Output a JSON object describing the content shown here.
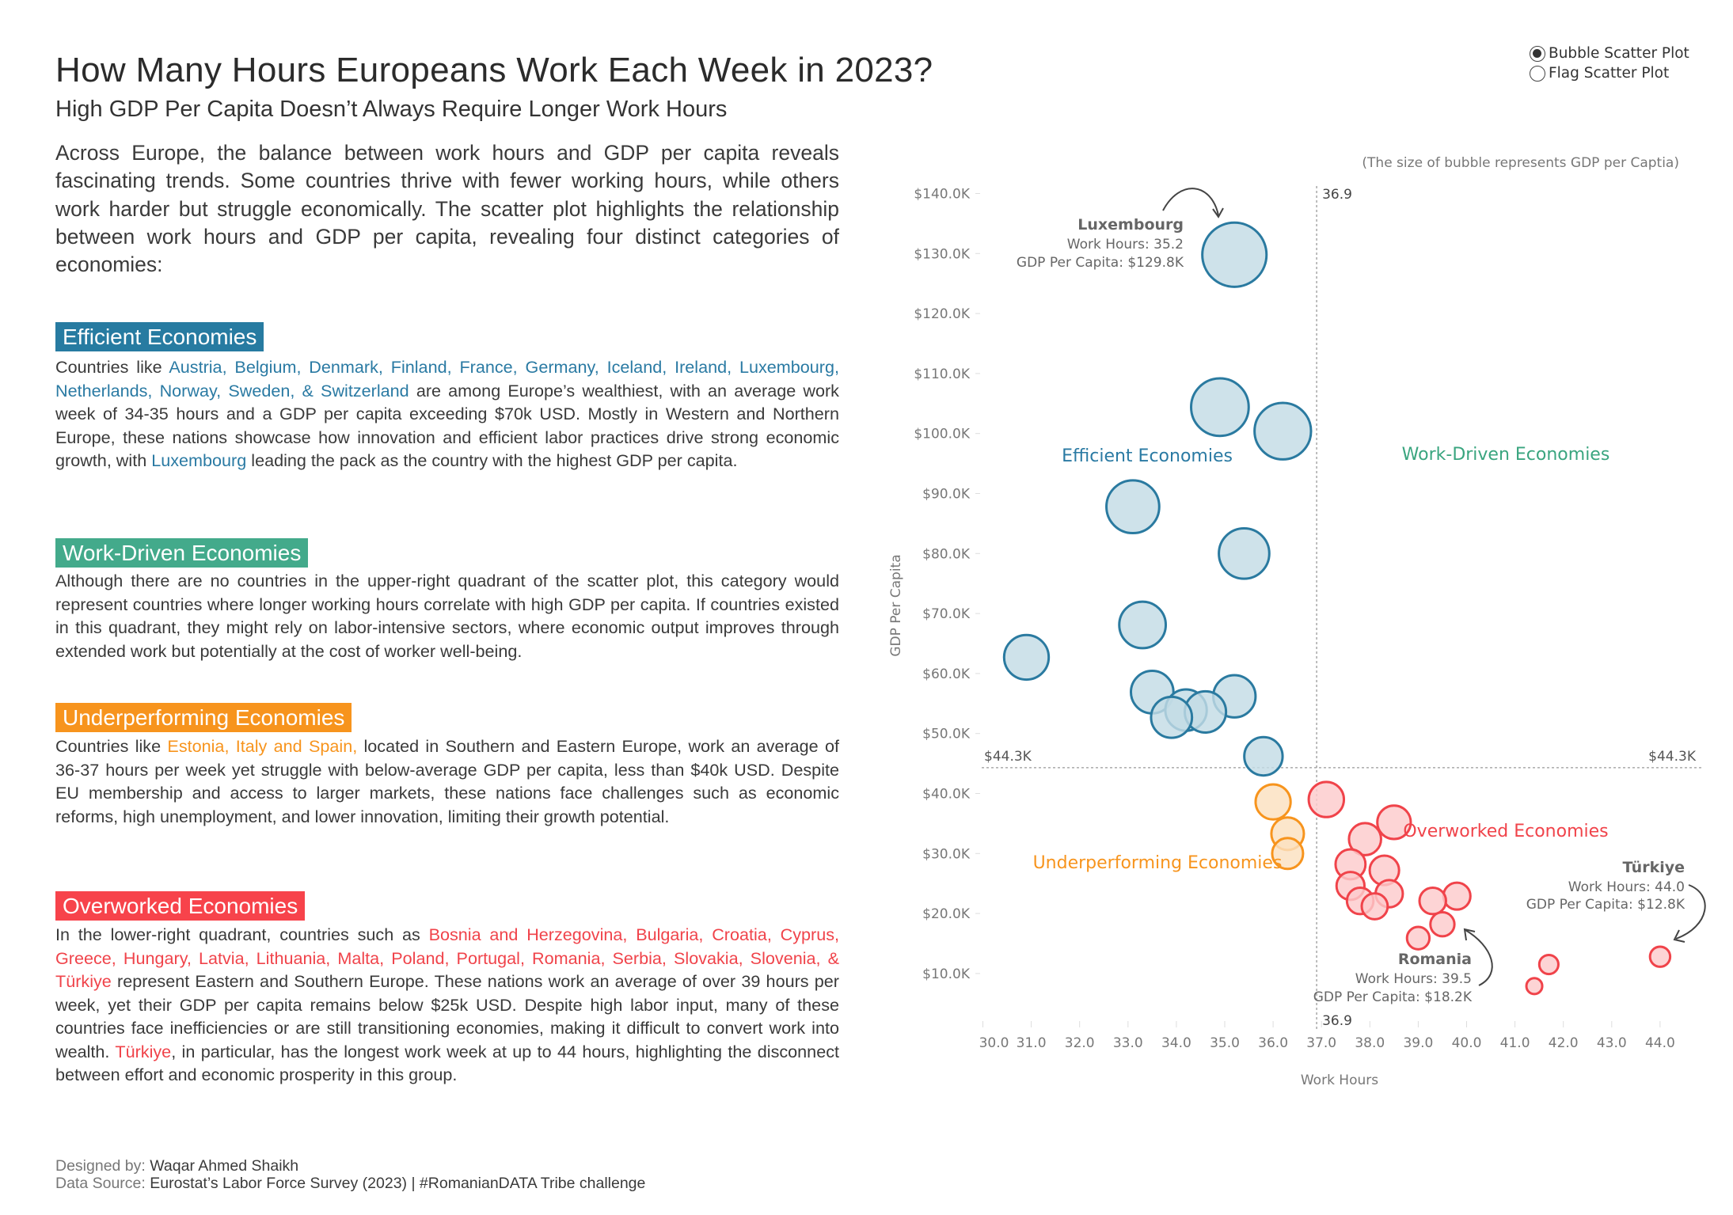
{
  "header": {
    "title": "How Many Hours Europeans Work Each Week in 2023?",
    "subtitle": "High GDP Per Capita Doesn’t Always Require Longer Work Hours"
  },
  "intro": "Across Europe, the balance between work hours and GDP per capita reveals fascinating trends. Some countries thrive with fewer working hours, while others work harder but struggle economically. The scatter plot highlights the relationship between work hours and GDP per capita, revealing four distinct categories of economies:",
  "sections": {
    "efficient": {
      "title": "Efficient Economies",
      "color": "#277ba1",
      "body": [
        "Countries like ",
        "Austria, Belgium, Denmark, Finland, France, Germany, Iceland, Ireland, Luxembourg, Netherlands, Norway, Sweden, & Switzerland",
        " are among Europe’s wealthiest, with an average work week of 34-35 hours and a GDP per capita exceeding $70k USD. Mostly in Western and Northern Europe, these nations showcase how innovation and efficient labor practices drive strong economic growth, with ",
        "Luxembourg",
        " leading the pack as the country with the highest GDP per capita."
      ]
    },
    "work_driven": {
      "title": "Work-Driven Economies",
      "color": "#43aa8b",
      "body": "Although there are no countries in the upper-right quadrant of the scatter plot, this category would represent countries where longer working hours correlate with high GDP per capita. If countries existed in this quadrant, they might rely on labor-intensive sectors, where economic output improves through extended work but potentially at the cost of worker well-being."
    },
    "underperforming": {
      "title": "Underperforming Economies",
      "color": "#f7941d",
      "body": [
        "Countries like ",
        "Estonia, Italy and Spain,",
        " located in Southern and Eastern Europe, work an average of 36-37 hours per week yet struggle with below-average GDP per capita, less than $40k USD. Despite EU membership and access to larger markets, these nations face challenges such as economic reforms, high unemployment, and lower innovation, limiting their growth potential."
      ]
    },
    "overworked": {
      "title": "Overworked Economies",
      "color": "#f7434b",
      "body": [
        "In the lower-right quadrant, countries such as ",
        "Bosnia and Herzegovina, Bulgaria, Croatia, Cyprus, Greece, Hungary, Latvia, Lithuania, Malta, Poland, Portugal, Romania, Serbia, Slovakia, Slovenia, & Türkiye",
        " represent Eastern and Southern Europe. These nations work an average of over 39 hours per week, yet their GDP per capita remains below $25k USD. Despite high labor input, many of these countries face inefficiencies or are still transitioning economies, making it difficult to convert work into wealth. ",
        "Türkiye",
        ", in particular, has the longest work week at up to 44 hours, highlighting the disconnect between effort and economic prosperity in this group."
      ]
    }
  },
  "footer": {
    "designed_label": "Designed by: ",
    "designed_value": "Waqar Ahmed Shaikh",
    "source_label": "Data Source: ",
    "source_value": "Eurostat’s Labor Force Survey (2023) | #RomanianDATA Tribe challenge"
  },
  "view_toggle": {
    "options": [
      {
        "label": "Bubble Scatter Plot",
        "selected": true
      },
      {
        "label": "Flag Scatter Plot",
        "selected": false
      }
    ]
  },
  "chart_data": {
    "type": "scatter",
    "note": "(The size of bubble represents GDP per Captia)",
    "xlabel": "Work Hours",
    "ylabel": "GDP Per Capita",
    "xlim": [
      30,
      44
    ],
    "ylim": [
      0,
      140
    ],
    "x_ticks": [
      "30.0",
      "31.0",
      "32.0",
      "33.0",
      "34.0",
      "35.0",
      "36.0",
      "37.0",
      "38.0",
      "39.0",
      "40.0",
      "41.0",
      "42.0",
      "43.0",
      "44.0"
    ],
    "y_ticks": [
      "$10.0K",
      "$20.0K",
      "$30.0K",
      "$40.0K",
      "$50.0K",
      "$60.0K",
      "$70.0K",
      "$80.0K",
      "$90.0K",
      "$100.0K",
      "$110.0K",
      "$120.0K",
      "$130.0K",
      "$140.0K"
    ],
    "grid": false,
    "reference_lines": {
      "x_value": 36.9,
      "x_label": "36.9",
      "y_value": 44.3,
      "y_label": "$44.3K"
    },
    "quadrant_labels": {
      "top_left": "Efficient Economies",
      "top_right": "Work-Driven Economies",
      "bottom_left": "Underperforming Economies",
      "bottom_right": "Overworked Economies"
    },
    "category_colors": {
      "efficient": {
        "stroke": "#2a7aa0",
        "fill": "#c3dce5"
      },
      "underperforming": {
        "stroke": "#f7941d",
        "fill": "#fbe0bf"
      },
      "overworked": {
        "stroke": "#f0434a",
        "fill": "#fccacc"
      }
    },
    "points": [
      {
        "x": 35.2,
        "y": 129.8,
        "category": "efficient"
      },
      {
        "x": 34.9,
        "y": 104.4,
        "category": "efficient"
      },
      {
        "x": 36.2,
        "y": 100.4,
        "category": "efficient"
      },
      {
        "x": 33.1,
        "y": 87.8,
        "category": "efficient"
      },
      {
        "x": 35.4,
        "y": 80.0,
        "category": "efficient"
      },
      {
        "x": 33.3,
        "y": 68.1,
        "category": "efficient"
      },
      {
        "x": 30.9,
        "y": 62.7,
        "category": "efficient"
      },
      {
        "x": 33.5,
        "y": 56.9,
        "category": "efficient"
      },
      {
        "x": 35.2,
        "y": 56.2,
        "category": "efficient"
      },
      {
        "x": 34.2,
        "y": 53.9,
        "category": "efficient"
      },
      {
        "x": 34.6,
        "y": 53.6,
        "category": "efficient"
      },
      {
        "x": 33.9,
        "y": 52.7,
        "category": "efficient"
      },
      {
        "x": 35.8,
        "y": 46.2,
        "category": "efficient"
      },
      {
        "x": 36.0,
        "y": 38.6,
        "category": "underperforming"
      },
      {
        "x": 36.3,
        "y": 33.3,
        "category": "underperforming"
      },
      {
        "x": 36.3,
        "y": 30.0,
        "category": "underperforming"
      },
      {
        "x": 37.1,
        "y": 39.0,
        "category": "overworked"
      },
      {
        "x": 38.5,
        "y": 35.2,
        "category": "overworked"
      },
      {
        "x": 37.9,
        "y": 32.4,
        "category": "overworked"
      },
      {
        "x": 37.6,
        "y": 28.2,
        "category": "overworked"
      },
      {
        "x": 38.3,
        "y": 27.2,
        "category": "overworked"
      },
      {
        "x": 37.6,
        "y": 24.6,
        "category": "overworked"
      },
      {
        "x": 38.4,
        "y": 23.3,
        "category": "overworked"
      },
      {
        "x": 37.8,
        "y": 22.1,
        "category": "overworked"
      },
      {
        "x": 38.1,
        "y": 21.2,
        "category": "overworked"
      },
      {
        "x": 39.3,
        "y": 22.1,
        "category": "overworked"
      },
      {
        "x": 39.8,
        "y": 22.9,
        "category": "overworked"
      },
      {
        "x": 39.5,
        "y": 18.2,
        "category": "overworked"
      },
      {
        "x": 39.0,
        "y": 15.9,
        "category": "overworked"
      },
      {
        "x": 41.7,
        "y": 11.5,
        "category": "overworked"
      },
      {
        "x": 41.4,
        "y": 7.9,
        "category": "overworked"
      },
      {
        "x": 44.0,
        "y": 12.8,
        "category": "overworked"
      }
    ],
    "annotations": [
      {
        "name": "Luxembourg",
        "hours": "Work Hours: 35.2",
        "gdp": "GDP Per Capita: $129.8K"
      },
      {
        "name": "Türkiye",
        "hours": "Work Hours: 44.0",
        "gdp": "GDP Per Capita: $12.8K"
      },
      {
        "name": "Romania",
        "hours": "Work Hours: 39.5",
        "gdp": "GDP Per Capita: $18.2K"
      }
    ]
  }
}
